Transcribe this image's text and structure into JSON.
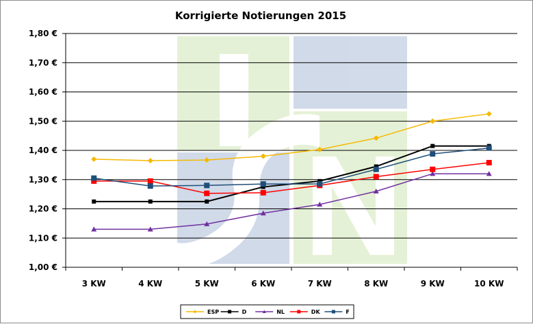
{
  "chart_data": {
    "type": "line",
    "title": "Korrigierte Notierungen 2015",
    "categories": [
      "3 KW",
      "4 KW",
      "5 KW",
      "6 KW",
      "7 KW",
      "8 KW",
      "9 KW",
      "10 KW"
    ],
    "ylim": [
      1.0,
      1.8
    ],
    "y_ticks": [
      "1,00 €",
      "1,10 €",
      "1,20 €",
      "1,30 €",
      "1,40 €",
      "1,50 €",
      "1,60 €",
      "1,70 €",
      "1,80 €"
    ],
    "grid": true,
    "legend_position": "bottom",
    "series": [
      {
        "name": "ESP",
        "color": "#F5B800",
        "marker": "diamond",
        "values": [
          1.37,
          1.365,
          1.367,
          1.38,
          1.403,
          1.442,
          1.5,
          1.525
        ]
      },
      {
        "name": "D",
        "color": "#000000",
        "marker": "square",
        "values": [
          1.225,
          1.225,
          1.225,
          1.275,
          1.295,
          1.345,
          1.415,
          1.415
        ]
      },
      {
        "name": "NL",
        "color": "#7030A0",
        "marker": "triangle",
        "values": [
          1.13,
          1.13,
          1.148,
          1.185,
          1.215,
          1.26,
          1.32,
          1.32
        ]
      },
      {
        "name": "DK",
        "color": "#FF0000",
        "marker": "square",
        "values": [
          1.295,
          1.295,
          1.253,
          1.255,
          1.28,
          1.31,
          1.335,
          1.358
        ]
      },
      {
        "name": "F",
        "color": "#1F4E79",
        "marker": "square",
        "values": [
          1.305,
          1.278,
          1.28,
          1.285,
          1.285,
          1.335,
          1.388,
          1.408
        ]
      }
    ]
  },
  "watermark": {
    "letters": "ISN"
  }
}
